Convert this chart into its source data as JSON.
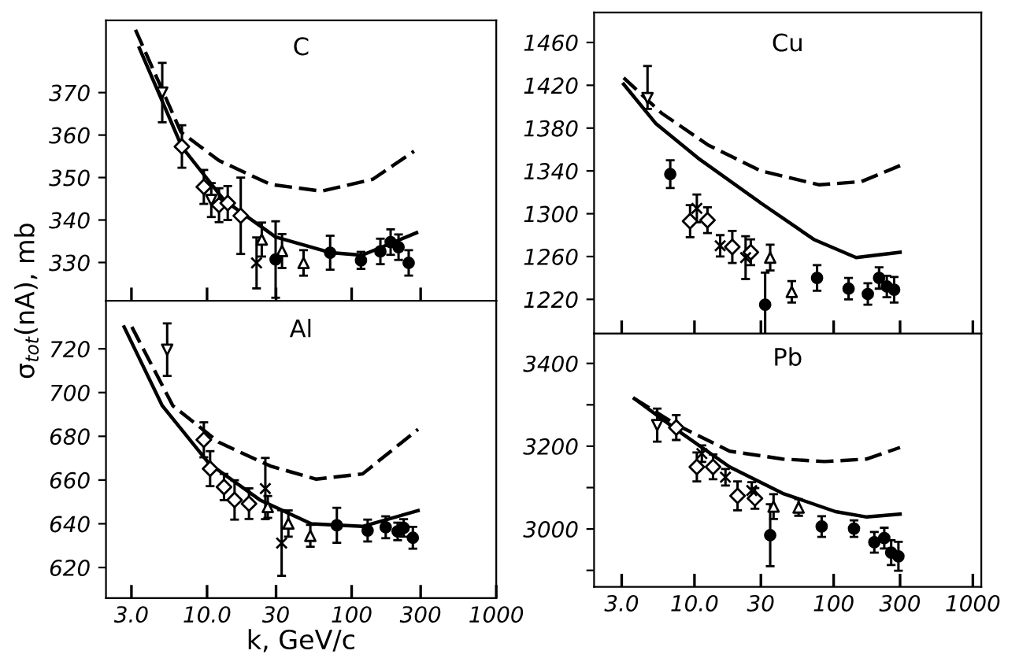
{
  "chart_data": [
    {
      "type": "scatter",
      "title": "C",
      "ylabel": "σ$_{tot}$(nA), mb",
      "xlim": [
        2.0,
        1000
      ],
      "ylim": [
        321,
        387
      ],
      "log": "x",
      "tick_labels": "y",
      "grid": false,
      "legend": false,
      "xticks": [
        {
          "value": 3,
          "label": null
        },
        {
          "value": 10,
          "label": null
        },
        {
          "value": 30,
          "label": null
        },
        {
          "value": 100,
          "label": null
        },
        {
          "value": 300,
          "label": null
        }
      ],
      "yticks": [
        330,
        340,
        350,
        360,
        370
      ],
      "series": [
        {
          "type": "scatter",
          "marker": "triangle_down",
          "color": "#000000",
          "x": [
            4.9,
            10.7
          ],
          "values": [
            370,
            344.7
          ],
          "errors": [
            7,
            4
          ]
        },
        {
          "type": "scatter",
          "marker": "diamond",
          "color": "#000000",
          "x": [
            6.7,
            9.5,
            12.1,
            13.9,
            17.1
          ],
          "values": [
            357.3,
            347.8,
            343.5,
            344,
            341
          ],
          "errors": [
            5,
            4,
            4,
            4,
            9
          ]
        },
        {
          "type": "scatter",
          "marker": "cross",
          "color": "#000000",
          "x": [
            22
          ],
          "values": [
            329.9
          ],
          "errors": [
            6
          ]
        },
        {
          "type": "scatter",
          "marker": "triangle",
          "color": "#000000",
          "x": [
            23.9,
            33,
            46.5
          ],
          "values": [
            335.4,
            332.7,
            329.9
          ],
          "errors": [
            4,
            4,
            3
          ]
        },
        {
          "type": "scatter",
          "marker": "circle",
          "color": "#000000",
          "x": [
            29.8,
            71,
            116,
            158,
            186,
            211,
            248
          ],
          "values": [
            330.7,
            332.3,
            330.5,
            332.6,
            334.8,
            333.6,
            329.9
          ],
          "errors": [
            9,
            4,
            2,
            3,
            3,
            3,
            3
          ]
        },
        {
          "type": "line",
          "line_style": "solid",
          "color": "#000000",
          "x": [
            3.4,
            6.7,
            13.1,
            29.8,
            72,
            118,
            281
          ],
          "values": [
            380.5,
            357.2,
            344.7,
            336,
            332.3,
            331.7,
            337
          ]
        },
        {
          "type": "line",
          "line_style": "dashed",
          "color": "#000000",
          "x": [
            3.2,
            6.6,
            12.1,
            27.4,
            62,
            140,
            270
          ],
          "values": [
            384.8,
            360.7,
            354,
            348.4,
            346.8,
            349.6,
            356.2
          ]
        }
      ]
    },
    {
      "type": "scatter",
      "title": "Al",
      "xlabel": "k, GeV/c",
      "xlim": [
        2.0,
        1000
      ],
      "ylim": [
        606,
        742
      ],
      "log": "x",
      "grid": false,
      "legend": false,
      "xticks": [
        {
          "value": 3,
          "label": "3.0"
        },
        {
          "value": 10,
          "label": "10.0"
        },
        30,
        100,
        300,
        1000
      ],
      "yticks": [
        620,
        640,
        660,
        680,
        700,
        720
      ],
      "series": [
        {
          "type": "scatter",
          "marker": "triangle_down",
          "color": "#000000",
          "x": [
            5.3
          ],
          "values": [
            719.6
          ],
          "errors": [
            12
          ]
        },
        {
          "type": "scatter",
          "marker": "diamond",
          "color": "#000000",
          "x": [
            9.5,
            10.5,
            13.1,
            15.5,
            19.5
          ],
          "values": [
            678.4,
            665.2,
            656.8,
            650.9,
            649.2
          ],
          "errors": [
            8,
            8,
            6,
            9,
            7
          ]
        },
        {
          "type": "scatter",
          "marker": "cross",
          "color": "#000000",
          "x": [
            25.3,
            32.8
          ],
          "values": [
            656.1,
            631.2
          ],
          "errors": [
            14,
            15
          ]
        },
        {
          "type": "scatter",
          "marker": "triangle",
          "color": "#000000",
          "x": [
            26.3,
            36.5,
            51.8
          ],
          "values": [
            647.7,
            640.1,
            634.5
          ],
          "errors": [
            5,
            6,
            5
          ]
        },
        {
          "type": "scatter",
          "marker": "circle",
          "color": "#000000",
          "x": [
            79,
            129,
            172,
            208,
            229,
            265
          ],
          "values": [
            639.3,
            636.9,
            638.4,
            636.5,
            638.1,
            633.6
          ],
          "errors": [
            8,
            5,
            5,
            4,
            4,
            5
          ]
        },
        {
          "type": "line",
          "line_style": "solid",
          "color": "#000000",
          "x": [
            2.67,
            4.9,
            10.3,
            23.2,
            52.6,
            119,
            288
          ],
          "values": [
            730,
            694,
            667.6,
            650.9,
            640,
            638.8,
            646
          ]
        },
        {
          "type": "line",
          "line_style": "dashed",
          "color": "#000000",
          "x": [
            3.02,
            5.8,
            12.1,
            27.4,
            57,
            119,
            288
          ],
          "values": [
            730,
            694,
            677.2,
            666.4,
            660.4,
            662.8,
            683.2
          ]
        }
      ]
    },
    {
      "type": "scatter",
      "title": "Cu",
      "xlim": [
        1.9,
        1150
      ],
      "ylim": [
        1188,
        1488
      ],
      "log": "x",
      "tick_labels": "y",
      "grid": false,
      "legend": false,
      "xticks": [
        {
          "value": 3,
          "label": null
        },
        {
          "value": 10,
          "label": null
        },
        {
          "value": 30,
          "label": null
        },
        {
          "value": 100,
          "label": null
        },
        {
          "value": 300,
          "label": null
        },
        {
          "value": 1000,
          "label": null
        }
      ],
      "yticks": [
        1220,
        1260,
        1300,
        1340,
        1380,
        1420,
        1460
      ],
      "series": [
        {
          "type": "scatter",
          "marker": "triangle_down",
          "color": "#000000",
          "x": [
            4.6
          ],
          "values": [
            1408
          ],
          "errors": [
            [
              1398,
              1438
            ]
          ]
        },
        {
          "type": "scatter",
          "marker": "circle",
          "color": "#000000",
          "x": [
            6.7
          ],
          "values": [
            1337
          ],
          "errors": [
            13
          ]
        },
        {
          "type": "scatter",
          "marker": "diamond",
          "color": "#000000",
          "x": [
            9.3,
            12.4,
            18.7,
            25.4
          ],
          "values": [
            1293,
            1294,
            1269,
            1264
          ],
          "errors": [
            15,
            12,
            15,
            12
          ]
        },
        {
          "type": "scatter",
          "marker": "cross",
          "color": "#000000",
          "x": [
            10.4,
            15.3,
            23.3
          ],
          "values": [
            1305,
            1270,
            1259
          ],
          "errors": [
            13,
            10,
            20
          ]
        },
        {
          "type": "scatter",
          "marker": "triangle",
          "color": "#000000",
          "x": [
            35,
            50
          ],
          "values": [
            1259,
            1227
          ],
          "errors": [
            12,
            10
          ]
        },
        {
          "type": "scatter",
          "marker": "circle",
          "color": "#000000",
          "x": [
            32.2,
            76,
            128,
            176,
            212,
            241,
            272
          ],
          "values": [
            1215,
            1240,
            1230,
            1225,
            1240,
            1232,
            1229
          ],
          "errors": [
            30,
            12,
            10,
            10,
            10,
            10,
            12
          ]
        },
        {
          "type": "line",
          "line_style": "solid",
          "color": "#000000",
          "x": [
            3.1,
            5.3,
            10.6,
            30,
            72,
            145,
            300
          ],
          "values": [
            1421,
            1384,
            1352,
            1310,
            1276,
            1259,
            1264
          ]
        },
        {
          "type": "line",
          "line_style": "dashed",
          "color": "#000000",
          "x": [
            3.1,
            5.8,
            12.6,
            30,
            79,
            158,
            300
          ],
          "values": [
            1427,
            1394,
            1364,
            1340,
            1327,
            1330,
            1345
          ]
        }
      ]
    },
    {
      "type": "scatter",
      "title": "Pb",
      "xlim": [
        1.9,
        1150
      ],
      "ylim": [
        2860,
        3472
      ],
      "log": "x",
      "grid": false,
      "legend": false,
      "xticks": [
        {
          "value": 3,
          "label": "3.0"
        },
        {
          "value": 10,
          "label": "10.0"
        },
        30,
        100,
        300,
        1000
      ],
      "yticks": [
        3400,
        {
          "value": 3300,
          "label": null
        },
        3200,
        {
          "value": 3100,
          "label": null
        },
        3000,
        {
          "value": 2900,
          "label": null
        }
      ],
      "series": [
        {
          "type": "scatter",
          "marker": "triangle_down",
          "color": "#000000",
          "x": [
            5.4
          ],
          "values": [
            3251
          ],
          "errors": [
            40
          ]
        },
        {
          "type": "scatter",
          "marker": "diamond",
          "color": "#000000",
          "x": [
            7.4,
            10.4,
            13.6,
            20.4,
            27.2
          ],
          "values": [
            3245,
            3150,
            3150,
            3080,
            3074
          ],
          "errors": [
            30,
            35,
            30,
            35,
            25
          ]
        },
        {
          "type": "scatter",
          "marker": "cross",
          "color": "#000000",
          "x": [
            11.3,
            16.7,
            25.8
          ],
          "values": [
            3182,
            3125,
            3093
          ],
          "errors": [
            20,
            20,
            20
          ]
        },
        {
          "type": "scatter",
          "marker": "triangle",
          "color": "#000000",
          "x": [
            37,
            56
          ],
          "values": [
            3054,
            3052
          ],
          "errors": [
            30,
            20
          ]
        },
        {
          "type": "scatter",
          "marker": "circle",
          "color": "#000000",
          "x": [
            35,
            82,
            140,
            196,
            231,
            259,
            292
          ],
          "values": [
            2985,
            3006,
            3001,
            2968,
            2978,
            2943,
            2934
          ],
          "errors": [
            75,
            25,
            20,
            25,
            25,
            30,
            35
          ]
        },
        {
          "type": "line",
          "line_style": "solid",
          "color": "#000000",
          "x": [
            3.7,
            7.5,
            17.9,
            43,
            103,
            173,
            300
          ],
          "values": [
            3315,
            3239,
            3150,
            3086,
            3042,
            3029,
            3036
          ]
        },
        {
          "type": "line",
          "line_style": "dashed",
          "color": "#000000",
          "x": [
            3.7,
            7.5,
            17.9,
            43,
            86,
            173,
            300
          ],
          "values": [
            3315,
            3251,
            3188,
            3169,
            3163,
            3169,
            3197
          ]
        }
      ]
    }
  ]
}
